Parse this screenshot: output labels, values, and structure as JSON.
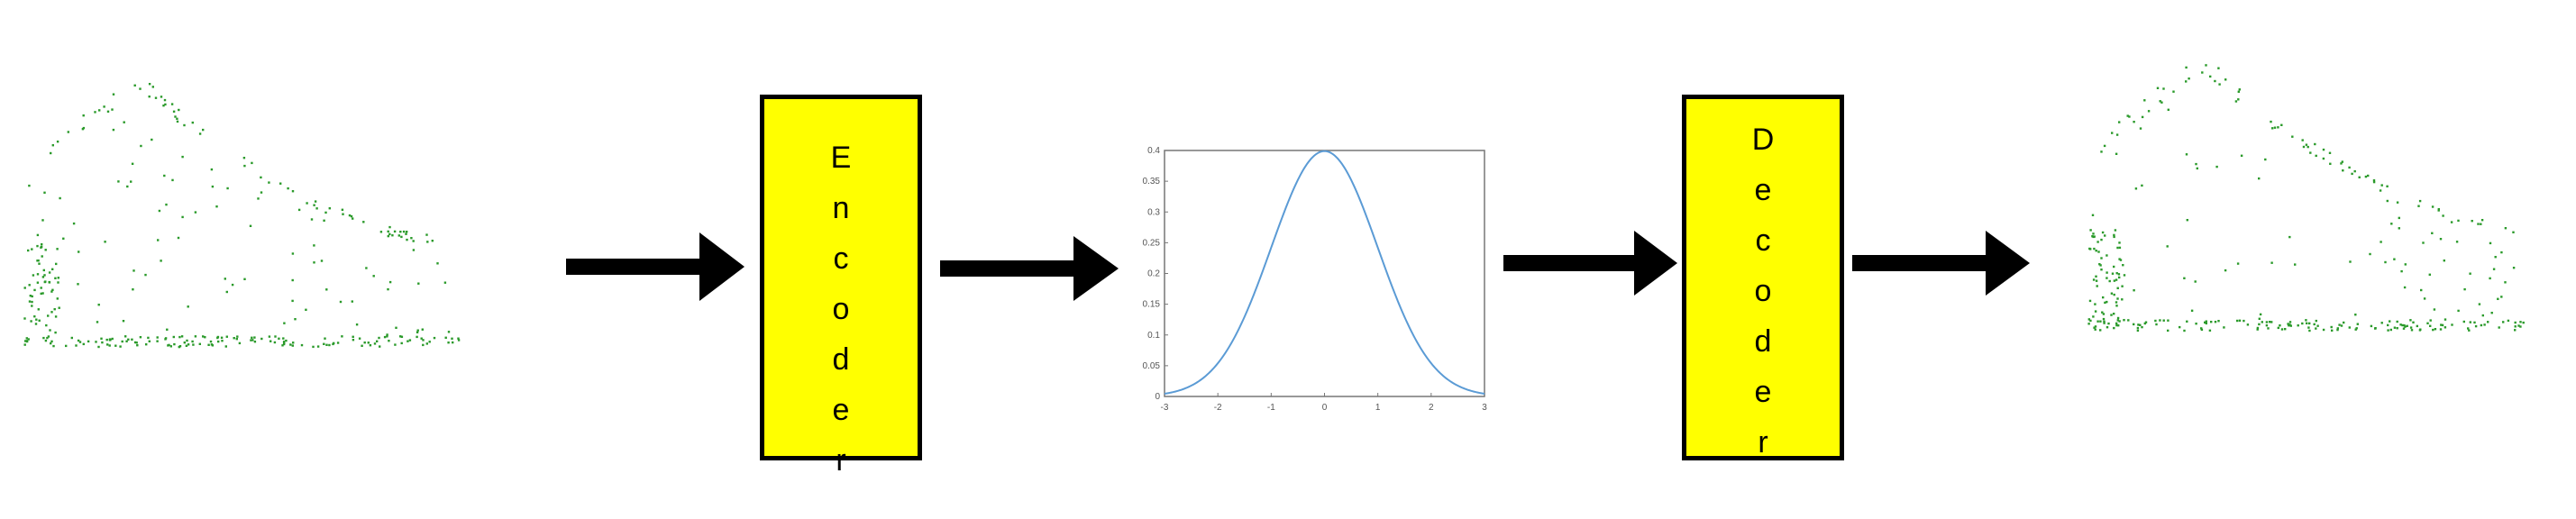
{
  "blocks": {
    "encoder": {
      "label": "Encoder",
      "fill": "#ffff00",
      "border": "#000000"
    },
    "decoder": {
      "label": "Decoder",
      "fill": "#ffff00",
      "border": "#000000"
    }
  },
  "latent_plot": {
    "type": "line",
    "curve": "standard normal density",
    "xlim": [
      -3,
      3
    ],
    "ylim": [
      0,
      0.4
    ],
    "x_ticks": [
      "-3",
      "-2",
      "-1",
      "0",
      "1",
      "2",
      "3"
    ],
    "y_ticks": [
      "0",
      "0.05",
      "0.1",
      "0.15",
      "0.2",
      "0.25",
      "0.3",
      "0.35",
      "0.4"
    ],
    "line_color": "#5b9bd5"
  },
  "point_cloud_color": "#2a9a2a",
  "arrow_color": "#000000"
}
